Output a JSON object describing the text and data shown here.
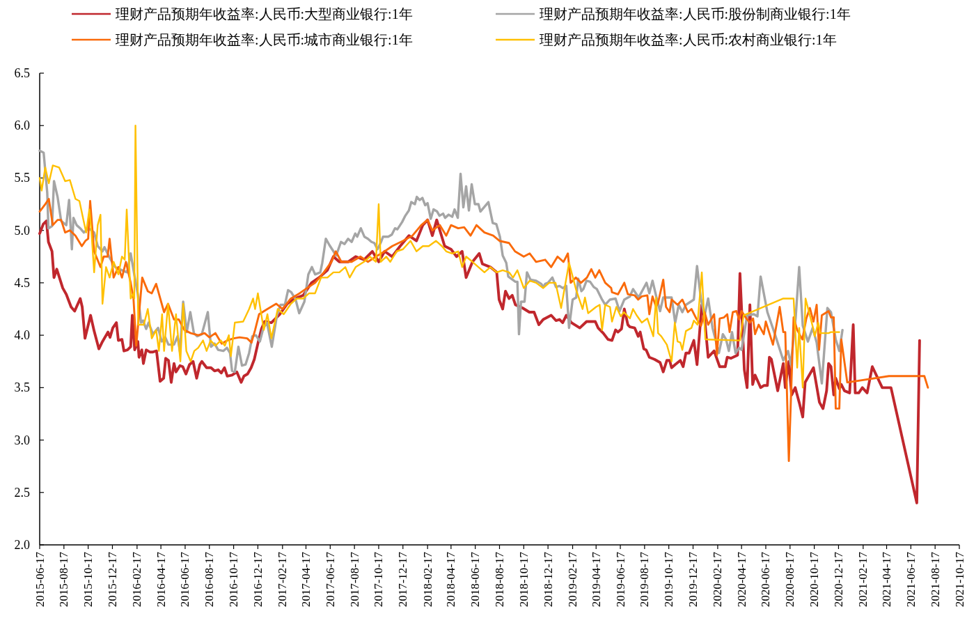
{
  "chart_data": {
    "type": "line",
    "legend": "top",
    "xlim": [
      "2015-06-17",
      "2021-10-17"
    ],
    "ylim": [
      2,
      6.5
    ],
    "yticks": [
      {
        "value": 2,
        "label": "2.0"
      },
      {
        "value": 2.5,
        "label": "2.5"
      },
      {
        "value": 3,
        "label": "3.0"
      },
      {
        "value": 3.5,
        "label": "3.5"
      },
      {
        "value": 4,
        "label": "4.0"
      },
      {
        "value": 4.5,
        "label": "4.5"
      },
      {
        "value": 5,
        "label": "5.0"
      },
      {
        "value": 5.5,
        "label": "5.5"
      },
      {
        "value": 6,
        "label": "6.0"
      },
      {
        "value": 6.5,
        "label": "6.5"
      }
    ],
    "xticks": [
      "2015-06-17",
      "2015-08-17",
      "2015-10-17",
      "2015-12-17",
      "2016-02-17",
      "2016-04-17",
      "2016-06-17",
      "2016-08-17",
      "2016-10-17",
      "2016-12-17",
      "2017-02-17",
      "2017-04-17",
      "2017-06-17",
      "2017-08-17",
      "2017-10-17",
      "2017-12-17",
      "2018-02-17",
      "2018-04-17",
      "2018-06-17",
      "2018-08-17",
      "2018-10-17",
      "2018-12-17",
      "2019-02-17",
      "2019-04-17",
      "2019-06-17",
      "2019-08-17",
      "2019-10-17",
      "2019-12-17",
      "2020-02-17",
      "2020-04-17",
      "2020-06-17",
      "2020-08-17",
      "2020-10-17",
      "2020-12-17",
      "2021-02-17",
      "2021-04-17",
      "2021-06-17",
      "2021-08-17",
      "2021-10-17"
    ],
    "series": [
      {
        "name": "理财产品预期年收益率:人民币:大型商业银行:1年",
        "color": "#c0272d",
        "x": [
          "2015-06-17",
          "2015-06-26",
          "2015-07-04",
          "2015-07-09",
          "2015-07-18",
          "2015-07-23",
          "2015-07-30",
          "2015-08-14",
          "2015-08-23",
          "2015-09-04",
          "2015-09-13",
          "2015-09-27",
          "2015-10-02",
          "2015-10-09",
          "2015-10-23",
          "2015-11-01",
          "2015-11-13",
          "2015-11-22",
          "2015-12-06",
          "2015-12-11",
          "2015-12-18",
          "2015-12-27",
          "2016-01-01",
          "2016-01-10",
          "2016-01-15",
          "2016-01-24",
          "2016-02-01",
          "2016-02-05",
          "2016-02-11",
          "2016-02-19",
          "2016-02-22",
          "2016-02-29",
          "2016-03-04",
          "2016-03-11",
          "2016-03-20",
          "2016-03-28",
          "2016-04-06",
          "2016-04-15",
          "2016-04-24",
          "2016-04-29",
          "2016-05-06",
          "2016-05-13",
          "2016-05-20",
          "2016-05-25",
          "2016-06-04",
          "2016-06-11",
          "2016-06-19",
          "2016-06-28",
          "2016-07-07",
          "2016-07-16",
          "2016-07-24",
          "2016-07-29",
          "2016-08-10",
          "2016-08-21",
          "2016-08-30",
          "2016-09-08",
          "2016-09-16",
          "2016-09-24",
          "2016-10-01",
          "2016-10-13",
          "2016-10-25",
          "2016-11-05",
          "2016-11-12",
          "2016-11-21",
          "2016-11-30",
          "2016-12-08",
          "2016-12-17",
          "2016-12-26",
          "2017-01-03",
          "2017-01-20",
          "2017-02-10",
          "2017-03-01",
          "2017-03-20",
          "2017-04-10",
          "2017-05-01",
          "2017-05-20",
          "2017-06-10",
          "2017-06-25",
          "2017-07-10",
          "2017-08-01",
          "2017-08-20",
          "2017-09-10",
          "2017-10-01",
          "2017-10-17",
          "2017-11-01",
          "2017-11-20",
          "2017-12-10",
          "2018-01-01",
          "2018-01-20",
          "2018-02-05",
          "2018-02-17",
          "2018-03-01",
          "2018-03-12",
          "2018-04-01",
          "2018-04-17",
          "2018-05-01",
          "2018-05-15",
          "2018-05-25",
          "2018-06-10",
          "2018-06-27",
          "2018-07-05",
          "2018-07-25",
          "2018-08-10",
          "2018-08-16",
          "2018-08-25",
          "2018-09-01",
          "2018-09-10",
          "2018-09-18",
          "2018-09-26",
          "2018-10-14",
          "2018-10-31",
          "2018-11-12",
          "2018-11-24",
          "2018-12-05",
          "2018-12-25",
          "2019-01-06",
          "2019-01-15",
          "2019-01-23",
          "2019-02-01",
          "2019-02-14",
          "2019-03-07",
          "2019-03-24",
          "2019-04-15",
          "2019-04-22",
          "2019-05-05",
          "2019-05-17",
          "2019-05-27",
          "2019-06-05",
          "2019-06-11",
          "2019-06-20",
          "2019-06-27",
          "2019-07-06",
          "2019-07-11",
          "2019-07-23",
          "2019-08-01",
          "2019-08-06",
          "2019-08-15",
          "2019-08-21",
          "2019-08-29",
          "2019-09-11",
          "2019-09-25",
          "2019-10-03",
          "2019-10-12",
          "2019-10-19",
          "2019-10-24",
          "2019-11-02",
          "2019-11-15",
          "2019-11-22",
          "2019-11-29",
          "2019-12-07",
          "2019-12-19",
          "2019-12-27",
          "2020-01-08",
          "2020-01-15",
          "2020-01-24",
          "2020-02-08",
          "2020-02-22",
          "2020-03-07",
          "2020-03-12",
          "2020-03-21",
          "2020-04-07",
          "2020-04-13",
          "2020-04-24",
          "2020-05-01",
          "2020-05-08",
          "2020-05-15",
          "2020-05-21",
          "2020-06-04",
          "2020-06-12",
          "2020-06-21",
          "2020-06-26",
          "2020-07-01",
          "2020-07-17",
          "2020-07-31",
          "2020-08-05",
          "2020-08-14",
          "2020-08-21",
          "2020-08-30",
          "2020-09-09",
          "2020-09-18",
          "2020-09-24",
          "2020-10-15",
          "2020-10-30",
          "2020-11-08",
          "2020-11-17",
          "2020-11-22",
          "2020-11-28",
          "2020-12-05",
          "2020-12-10",
          "2020-12-19",
          "2020-12-24",
          "2021-01-01",
          "2021-01-14",
          "2021-01-23",
          "2021-01-28",
          "2021-02-06",
          "2021-02-15",
          "2021-02-27",
          "2021-03-12",
          "2021-04-06",
          "2021-04-28",
          "2021-07-02",
          "2021-07-09"
        ],
        "values": [
          4.97,
          5.06,
          5.09,
          4.89,
          4.8,
          4.55,
          4.63,
          4.45,
          4.39,
          4.27,
          4.23,
          4.35,
          4.27,
          3.97,
          4.19,
          4.04,
          3.87,
          3.94,
          4.03,
          3.98,
          4.07,
          4.12,
          3.95,
          3.96,
          3.85,
          3.86,
          3.89,
          4.19,
          3.86,
          3.94,
          3.79,
          3.86,
          3.73,
          3.86,
          3.84,
          3.84,
          3.85,
          3.56,
          3.59,
          3.78,
          3.76,
          3.55,
          3.73,
          3.65,
          3.71,
          3.7,
          3.63,
          3.72,
          3.75,
          3.59,
          3.72,
          3.75,
          3.69,
          3.69,
          3.66,
          3.67,
          3.64,
          3.69,
          3.61,
          3.62,
          3.65,
          3.55,
          3.61,
          3.63,
          3.69,
          3.77,
          3.92,
          4.06,
          4.13,
          4.12,
          4.2,
          4.3,
          4.35,
          4.38,
          4.5,
          4.55,
          4.62,
          4.75,
          4.7,
          4.7,
          4.75,
          4.72,
          4.8,
          4.7,
          4.8,
          4.75,
          4.85,
          4.95,
          4.9,
          5.05,
          5.1,
          4.95,
          5.1,
          4.85,
          4.82,
          4.75,
          4.8,
          4.55,
          4.7,
          4.78,
          4.68,
          4.65,
          4.6,
          4.34,
          4.25,
          4.42,
          4.35,
          4.38,
          4.29,
          4.26,
          4.22,
          4.22,
          4.1,
          4.15,
          4.19,
          4.14,
          4.15,
          4.12,
          4.19,
          4.12,
          4.07,
          4.13,
          4.13,
          4.07,
          4.02,
          3.96,
          3.95,
          4.05,
          4.03,
          4.06,
          4.25,
          4.1,
          4.08,
          4.07,
          3.99,
          4.03,
          3.87,
          3.86,
          3.79,
          3.77,
          3.74,
          3.65,
          3.76,
          3.76,
          3.69,
          3.72,
          3.76,
          3.7,
          3.83,
          3.83,
          3.95,
          3.72,
          4.29,
          4.16,
          3.79,
          3.85,
          3.7,
          3.7,
          3.79,
          3.78,
          3.81,
          4.59,
          3.67,
          3.5,
          4.29,
          3.53,
          3.62,
          3.5,
          3.52,
          3.52,
          3.79,
          3.77,
          3.47,
          3.73,
          3.5,
          3.75,
          3.43,
          3.5,
          3.36,
          3.22,
          3.55,
          3.69,
          3.36,
          3.3,
          3.47,
          3.73,
          3.7,
          3.43,
          3.59,
          3.49,
          3.53,
          3.47,
          3.45,
          4.1,
          3.45,
          3.45,
          3.5,
          3.45,
          3.7,
          3.5,
          3.5,
          2.4,
          3.95
        ]
      },
      {
        "name": "理财产品预期年收益率:人民币:股份制商业银行:1年",
        "color": "#a5a5a5",
        "x": [
          "2015-06-17",
          "2015-06-27",
          "2015-07-06",
          "2015-07-09",
          "2015-07-18",
          "2015-07-23",
          "2015-08-01",
          "2015-08-10",
          "2015-08-23",
          "2015-08-30",
          "2015-09-06",
          "2015-09-10",
          "2015-09-18",
          "2015-09-27",
          "2015-10-06",
          "2015-10-18",
          "2015-11-01",
          "2015-11-10",
          "2015-11-22",
          "2015-11-27",
          "2015-12-10",
          "2015-12-24",
          "2016-01-10",
          "2016-01-23",
          "2016-02-01",
          "2016-02-10",
          "2016-02-19",
          "2016-02-27",
          "2016-03-03",
          "2016-03-11",
          "2016-03-17",
          "2016-03-28",
          "2016-04-10",
          "2016-04-19",
          "2016-04-28",
          "2016-05-06",
          "2016-05-20",
          "2016-05-29",
          "2016-06-04",
          "2016-06-12",
          "2016-06-21",
          "2016-06-30",
          "2016-07-09",
          "2016-07-17",
          "2016-07-29",
          "2016-08-13",
          "2016-08-21",
          "2016-08-30",
          "2016-09-08",
          "2016-09-21",
          "2016-09-30",
          "2016-10-08",
          "2016-10-13",
          "2016-10-20",
          "2016-10-29",
          "2016-11-07",
          "2016-11-16",
          "2016-11-25",
          "2016-12-03",
          "2016-12-12",
          "2016-12-22",
          "2016-12-31",
          "2017-01-09",
          "2017-01-21",
          "2017-02-03",
          "2017-02-12",
          "2017-02-23",
          "2017-03-03",
          "2017-03-11",
          "2017-03-22",
          "2017-03-31",
          "2017-04-13",
          "2017-04-23",
          "2017-05-02",
          "2017-05-10",
          "2017-05-23",
          "2017-05-28",
          "2017-06-06",
          "2017-06-15",
          "2017-07-02",
          "2017-07-14",
          "2017-07-23",
          "2017-08-01",
          "2017-08-10",
          "2017-08-19",
          "2017-08-24",
          "2017-09-02",
          "2017-09-11",
          "2017-09-20",
          "2017-09-29",
          "2017-10-06",
          "2017-10-14",
          "2017-10-23",
          "2017-10-28",
          "2017-11-10",
          "2017-11-19",
          "2017-11-27",
          "2017-12-03",
          "2017-12-15",
          "2017-12-23",
          "2018-01-01",
          "2018-01-07",
          "2018-01-16",
          "2018-01-21",
          "2018-01-28",
          "2018-02-04",
          "2018-02-11",
          "2018-02-17",
          "2018-02-25",
          "2018-03-04",
          "2018-03-13",
          "2018-03-19",
          "2018-03-28",
          "2018-04-02",
          "2018-04-11",
          "2018-04-20",
          "2018-04-26",
          "2018-05-04",
          "2018-05-11",
          "2018-05-18",
          "2018-05-25",
          "2018-06-01",
          "2018-06-08",
          "2018-06-16",
          "2018-06-25",
          "2018-06-30",
          "2018-07-20",
          "2018-07-31",
          "2018-08-09",
          "2018-08-18",
          "2018-08-25",
          "2018-09-03",
          "2018-09-08",
          "2018-09-26",
          "2018-10-01",
          "2018-10-05",
          "2018-10-10",
          "2018-10-19",
          "2018-10-25",
          "2018-11-03",
          "2018-11-17",
          "2018-11-30",
          "2018-12-05",
          "2018-12-10",
          "2018-12-17",
          "2018-12-28",
          "2019-01-06",
          "2019-01-15",
          "2019-01-23",
          "2019-02-01",
          "2019-02-08",
          "2019-02-17",
          "2019-02-26",
          "2019-03-03",
          "2019-03-11",
          "2019-03-16",
          "2019-03-24",
          "2019-04-02",
          "2019-04-11",
          "2019-04-19",
          "2019-05-02",
          "2019-05-10",
          "2019-05-22",
          "2019-06-05",
          "2019-06-15",
          "2019-06-27",
          "2019-07-11",
          "2019-07-19",
          "2019-08-02",
          "2019-08-22",
          "2019-08-29",
          "2019-09-06",
          "2019-09-16",
          "2019-09-25",
          "2019-10-03",
          "2019-10-24",
          "2019-11-02",
          "2019-11-11",
          "2019-11-20",
          "2019-11-29",
          "2019-12-19",
          "2019-12-27",
          "2020-01-06",
          "2020-01-15",
          "2020-01-24",
          "2020-02-04",
          "2020-02-20",
          "2020-03-01",
          "2020-03-09",
          "2020-03-16",
          "2020-03-24",
          "2020-04-02",
          "2020-04-11",
          "2020-04-17",
          "2020-05-01",
          "2020-05-18",
          "2020-05-27",
          "2020-06-04",
          "2020-06-21",
          "2020-07-10",
          "2020-07-31",
          "2020-08-12",
          "2020-08-19",
          "2020-08-31",
          "2020-09-09",
          "2020-09-18",
          "2020-10-01",
          "2020-10-13",
          "2020-10-23",
          "2020-11-05",
          "2020-11-19",
          "2020-11-28",
          "2020-12-10",
          "2020-12-19",
          "2020-12-27"
        ],
        "values": [
          5.76,
          5.74,
          5.36,
          5.02,
          5.04,
          5.47,
          5.32,
          5.09,
          5.05,
          5.29,
          4.82,
          5.12,
          5.05,
          5.02,
          4.98,
          5.02,
          4.98,
          4.85,
          4.8,
          4.84,
          4.74,
          4.65,
          4.62,
          4.6,
          4.78,
          4.58,
          4.39,
          4.12,
          4.14,
          4.06,
          4.12,
          4.01,
          4.07,
          3.94,
          3.98,
          3.91,
          3.91,
          3.99,
          3.84,
          4.32,
          4.03,
          4.22,
          4.02,
          3.99,
          4.01,
          4.22,
          3.89,
          3.92,
          3.86,
          3.85,
          3.88,
          3.83,
          3.66,
          3.65,
          3.89,
          3.71,
          3.72,
          3.83,
          3.99,
          4.0,
          3.94,
          4.07,
          4.12,
          3.89,
          4.19,
          4.29,
          4.29,
          4.43,
          4.41,
          4.34,
          4.21,
          4.32,
          4.58,
          4.65,
          4.58,
          4.6,
          4.69,
          4.92,
          4.86,
          4.76,
          4.89,
          4.87,
          4.92,
          4.89,
          4.97,
          4.94,
          5.02,
          4.94,
          4.92,
          4.89,
          4.88,
          4.82,
          4.89,
          4.94,
          4.94,
          4.96,
          5.02,
          5.01,
          5.08,
          5.14,
          5.19,
          5.27,
          5.25,
          5.32,
          5.29,
          5.31,
          5.24,
          5.26,
          5.11,
          5.2,
          5.18,
          5.14,
          5.16,
          5.12,
          5.15,
          5.13,
          5.2,
          5.12,
          5.54,
          5.22,
          5.42,
          5.19,
          5.44,
          5.25,
          5.25,
          5.18,
          5.27,
          5.07,
          5.06,
          4.94,
          4.76,
          4.69,
          4.56,
          4.51,
          4.51,
          4.01,
          4.32,
          4.32,
          4.6,
          4.53,
          4.52,
          4.49,
          4.46,
          4.49,
          4.5,
          4.55,
          4.46,
          4.47,
          4.45,
          4.47,
          4.07,
          4.34,
          4.36,
          4.54,
          4.42,
          4.44,
          4.52,
          4.51,
          4.46,
          4.44,
          4.34,
          4.29,
          4.34,
          4.35,
          4.23,
          4.34,
          4.37,
          4.44,
          4.36,
          4.5,
          4.4,
          4.52,
          4.36,
          4.23,
          4.36,
          4.36,
          4.12,
          4.29,
          4.22,
          4.29,
          4.34,
          4.66,
          4.34,
          4.19,
          4.35,
          4.07,
          3.83,
          4.01,
          3.96,
          3.85,
          4.03,
          3.83,
          3.88,
          3.86,
          4.19,
          4.2,
          4.18,
          4.56,
          4.22,
          4.01,
          3.76,
          3.85,
          3.72,
          4.16,
          4.65,
          4.09,
          3.94,
          4.07,
          3.93,
          3.54,
          4.26,
          4.22,
          3.96,
          3.85,
          4.05
        ]
      },
      {
        "name": "理财产品预期年收益率:人民币:城市商业银行:1年",
        "color": "#fa6a0a",
        "x": [
          "2015-06-17",
          "2015-07-01",
          "2015-07-10",
          "2015-07-20",
          "2015-08-01",
          "2015-08-10",
          "2015-08-20",
          "2015-09-01",
          "2015-09-15",
          "2015-10-01",
          "2015-10-10",
          "2015-10-17",
          "2015-10-22",
          "2015-11-01",
          "2015-11-17",
          "2015-11-25",
          "2015-12-05",
          "2015-12-10",
          "2015-12-20",
          "2016-01-01",
          "2016-01-10",
          "2016-01-20",
          "2016-02-01",
          "2016-02-08",
          "2016-02-15",
          "2016-03-01",
          "2016-03-15",
          "2016-03-25",
          "2016-04-05",
          "2016-04-25",
          "2016-05-05",
          "2016-05-20",
          "2016-06-01",
          "2016-06-15",
          "2016-07-01",
          "2016-07-20",
          "2016-08-05",
          "2016-08-17",
          "2016-09-01",
          "2016-09-17",
          "2016-10-01",
          "2016-10-17",
          "2016-11-01",
          "2016-11-20",
          "2016-12-01",
          "2016-12-10",
          "2016-12-20",
          "2017-01-10",
          "2017-02-01",
          "2017-02-17",
          "2017-03-10",
          "2017-04-01",
          "2017-04-20",
          "2017-05-10",
          "2017-06-01",
          "2017-06-20",
          "2017-07-01",
          "2017-07-15",
          "2017-08-10",
          "2017-09-01",
          "2017-09-20",
          "2017-10-10",
          "2017-11-01",
          "2017-11-20",
          "2017-12-17",
          "2018-01-10",
          "2018-02-01",
          "2018-02-17",
          "2018-03-01",
          "2018-03-20",
          "2018-04-05",
          "2018-04-17",
          "2018-05-05",
          "2018-05-20",
          "2018-06-05",
          "2018-06-20",
          "2018-07-10",
          "2018-08-01",
          "2018-08-17",
          "2018-09-10",
          "2018-09-25",
          "2018-10-17",
          "2018-11-01",
          "2018-11-17",
          "2018-12-10",
          "2018-12-25",
          "2019-01-10",
          "2019-01-25",
          "2019-02-05",
          "2019-02-12",
          "2019-02-25",
          "2019-03-10",
          "2019-03-25",
          "2019-04-05",
          "2019-04-15",
          "2019-04-25",
          "2019-05-10",
          "2019-05-25",
          "2019-05-27",
          "2019-06-11",
          "2019-06-27",
          "2019-07-06",
          "2019-07-23",
          "2019-08-01",
          "2019-08-10",
          "2019-08-24",
          "2019-08-29",
          "2019-09-06",
          "2019-09-15",
          "2019-09-20",
          "2019-10-03",
          "2019-10-10",
          "2019-10-19",
          "2019-10-24",
          "2019-11-08",
          "2019-11-20",
          "2019-12-04",
          "2019-12-13",
          "2019-12-25",
          "2020-01-06",
          "2020-01-15",
          "2020-01-24",
          "2020-02-08",
          "2020-02-15",
          "2020-02-22",
          "2020-03-04",
          "2020-03-12",
          "2020-03-18",
          "2020-03-26",
          "2020-04-04",
          "2020-04-11",
          "2020-04-17",
          "2020-04-29",
          "2020-05-08",
          "2020-05-16",
          "2020-05-21",
          "2020-05-30",
          "2020-06-12",
          "2020-06-17",
          "2020-07-05",
          "2020-07-22",
          "2020-07-31",
          "2020-08-05",
          "2020-08-14",
          "2020-08-26",
          "2020-09-04",
          "2020-09-17",
          "2020-09-27",
          "2020-10-06",
          "2020-10-15",
          "2020-10-23",
          "2020-10-29",
          "2020-11-05",
          "2020-11-22",
          "2020-11-28",
          "2020-12-05",
          "2020-12-10",
          "2020-12-19",
          "2020-12-24",
          "2021-01-08",
          "2021-04-23",
          "2021-07-21",
          "2021-07-30"
        ],
        "values": [
          5.18,
          5.25,
          5.3,
          5.05,
          5.1,
          5.1,
          4.98,
          5.0,
          4.95,
          4.85,
          4.9,
          4.92,
          5.28,
          4.8,
          4.65,
          4.75,
          4.75,
          4.92,
          4.55,
          4.65,
          4.55,
          4.7,
          4.5,
          4.35,
          3.9,
          4.55,
          4.42,
          4.4,
          4.49,
          4.22,
          4.3,
          4.15,
          4.15,
          4.05,
          4.02,
          4.0,
          4.02,
          3.98,
          4.02,
          3.92,
          3.95,
          3.97,
          3.98,
          3.97,
          3.93,
          4.05,
          4.2,
          4.25,
          4.3,
          4.25,
          4.35,
          4.4,
          4.45,
          4.5,
          4.6,
          4.7,
          4.8,
          4.7,
          4.7,
          4.75,
          4.7,
          4.75,
          4.8,
          4.85,
          4.9,
          4.95,
          5.05,
          5.1,
          5.0,
          5.05,
          4.95,
          5.05,
          5.02,
          5.03,
          4.95,
          5.05,
          4.98,
          4.95,
          4.9,
          4.88,
          4.8,
          4.75,
          4.78,
          4.7,
          4.72,
          4.65,
          4.75,
          4.7,
          4.78,
          4.5,
          4.55,
          4.5,
          4.55,
          4.63,
          4.55,
          4.62,
          4.5,
          4.45,
          4.41,
          4.39,
          4.5,
          4.39,
          4.38,
          4.34,
          4.37,
          4.38,
          4.2,
          4.37,
          4.27,
          4.31,
          4.53,
          4.27,
          4.22,
          4.34,
          4.29,
          4.34,
          4.22,
          4.25,
          4.16,
          4.09,
          4.22,
          4.1,
          4.2,
          3.81,
          4.16,
          4.17,
          4.2,
          4.03,
          4.22,
          4.23,
          4.15,
          4.23,
          4.16,
          4.12,
          4.16,
          4.01,
          4.1,
          4.01,
          4.13,
          3.91,
          4.27,
          4.03,
          4.03,
          2.8,
          4.17,
          4.05,
          3.96,
          4.16,
          4.26,
          4.13,
          4.29,
          3.86,
          4.19,
          4.23,
          4.17,
          4.17,
          3.3,
          3.3,
          3.96,
          3.55,
          3.61,
          3.61,
          3.5
        ]
      },
      {
        "name": "理财产品预期年收益率:人民币:农村商业银行:1年",
        "color": "#ffc000",
        "x": [
          "2015-06-17",
          "2015-06-22",
          "2015-07-01",
          "2015-07-10",
          "2015-07-20",
          "2015-08-05",
          "2015-08-20",
          "2015-09-01",
          "2015-09-15",
          "2015-09-25",
          "2015-10-05",
          "2015-10-12",
          "2015-10-20",
          "2015-10-25",
          "2015-11-01",
          "2015-11-10",
          "2015-11-17",
          "2015-11-22",
          "2015-12-01",
          "2015-12-10",
          "2015-12-20",
          "2016-01-01",
          "2016-01-10",
          "2016-01-17",
          "2016-01-22",
          "2016-02-01",
          "2016-02-08",
          "2016-02-10",
          "2016-02-13",
          "2016-02-20",
          "2016-03-05",
          "2016-03-15",
          "2016-03-25",
          "2016-04-05",
          "2016-04-12",
          "2016-04-20",
          "2016-04-25",
          "2016-05-05",
          "2016-05-15",
          "2016-05-25",
          "2016-06-05",
          "2016-06-12",
          "2016-06-20",
          "2016-07-01",
          "2016-07-10",
          "2016-07-20",
          "2016-08-01",
          "2016-08-10",
          "2016-08-20",
          "2016-09-01",
          "2016-09-15",
          "2016-09-25",
          "2016-10-05",
          "2016-10-10",
          "2016-10-20",
          "2016-11-10",
          "2016-11-25",
          "2016-12-05",
          "2016-12-10",
          "2016-12-17",
          "2017-01-01",
          "2017-01-10",
          "2017-01-20",
          "2017-02-05",
          "2017-02-20",
          "2017-03-10",
          "2017-03-25",
          "2017-04-10",
          "2017-04-25",
          "2017-05-10",
          "2017-05-25",
          "2017-06-10",
          "2017-06-25",
          "2017-07-10",
          "2017-07-25",
          "2017-08-05",
          "2017-08-20",
          "2017-09-10",
          "2017-09-25",
          "2017-10-10",
          "2017-10-17",
          "2017-10-22",
          "2017-11-05",
          "2017-11-15",
          "2017-12-01",
          "2017-12-17",
          "2018-01-05",
          "2018-01-20",
          "2018-02-05",
          "2018-02-20",
          "2018-03-10",
          "2018-03-25",
          "2018-04-05",
          "2018-04-20",
          "2018-05-05",
          "2018-05-15",
          "2018-05-25",
          "2018-06-10",
          "2018-06-25",
          "2018-07-10",
          "2018-07-25",
          "2018-08-10",
          "2018-08-25",
          "2018-09-10",
          "2018-09-20",
          "2018-10-01",
          "2018-10-17",
          "2018-11-01",
          "2018-11-17",
          "2018-12-05",
          "2018-12-20",
          "2019-01-05",
          "2019-01-19",
          "2019-02-08",
          "2019-02-26",
          "2019-03-14",
          "2019-03-20",
          "2019-03-28",
          "2019-04-17",
          "2019-04-26",
          "2019-05-02",
          "2019-05-10",
          "2019-05-22",
          "2019-05-27",
          "2019-06-07",
          "2019-06-18",
          "2019-06-26",
          "2019-07-11",
          "2019-07-19",
          "2019-07-28",
          "2019-08-10",
          "2019-08-24",
          "2019-09-08",
          "2019-09-15",
          "2019-09-20",
          "2019-09-28",
          "2019-10-12",
          "2019-10-24",
          "2019-11-01",
          "2019-11-08",
          "2019-11-15",
          "2019-11-20",
          "2019-11-29",
          "2019-12-13",
          "2019-12-19",
          "2019-12-28",
          "2020-01-08",
          "2020-01-17",
          "2020-04-13",
          "2020-04-22",
          "2020-07-31",
          "2020-08-26",
          "2020-09-04",
          "2020-09-09",
          "2020-09-18",
          "2020-09-25",
          "2020-10-14",
          "2020-10-18",
          "2020-10-27",
          "2020-11-01",
          "2020-11-22",
          "2020-11-28",
          "2020-12-19"
        ],
        "values": [
          5.5,
          5.38,
          5.6,
          5.45,
          5.62,
          5.6,
          5.47,
          5.48,
          5.3,
          5.28,
          5.1,
          4.98,
          5.2,
          5.0,
          4.6,
          5.05,
          5.15,
          4.3,
          4.65,
          4.55,
          4.7,
          4.58,
          4.75,
          4.72,
          5.2,
          4.35,
          4.4,
          4.35,
          6.0,
          4.1,
          4.1,
          4.25,
          3.97,
          4.05,
          3.85,
          4.2,
          3.85,
          4.3,
          3.85,
          4.2,
          3.75,
          4.3,
          3.85,
          3.75,
          3.85,
          3.88,
          3.95,
          3.85,
          3.95,
          3.9,
          3.95,
          3.9,
          4.0,
          3.8,
          4.12,
          4.13,
          4.25,
          4.35,
          4.25,
          4.4,
          4.05,
          4.2,
          3.97,
          4.25,
          4.2,
          4.3,
          4.35,
          4.35,
          4.4,
          4.4,
          4.55,
          4.55,
          4.6,
          4.6,
          4.65,
          4.55,
          4.65,
          4.7,
          4.75,
          4.7,
          5.25,
          4.7,
          4.75,
          4.7,
          4.8,
          4.82,
          4.9,
          4.8,
          4.85,
          4.85,
          4.9,
          4.85,
          4.8,
          4.78,
          4.8,
          4.65,
          4.75,
          4.7,
          4.65,
          4.6,
          4.65,
          4.6,
          4.62,
          4.6,
          4.55,
          4.62,
          4.45,
          4.52,
          4.5,
          4.45,
          4.5,
          4.5,
          4.26,
          4.69,
          4.43,
          4.25,
          4.36,
          4.21,
          4.27,
          4.29,
          4.05,
          4.29,
          4.27,
          4.13,
          4.27,
          4.18,
          4.22,
          4.16,
          4.25,
          4.19,
          4.12,
          4.16,
          3.99,
          4.36,
          4.02,
          3.99,
          3.91,
          3.75,
          4.12,
          3.94,
          3.93,
          3.86,
          4.04,
          4.07,
          4.14,
          4.1,
          4.6,
          3.96,
          3.95,
          4.19,
          4.35,
          4.35,
          3.69,
          4.07,
          3.5,
          4.35,
          4.07,
          3.99,
          4.12,
          4.02,
          4.02,
          4.03,
          4.03
        ]
      }
    ]
  }
}
